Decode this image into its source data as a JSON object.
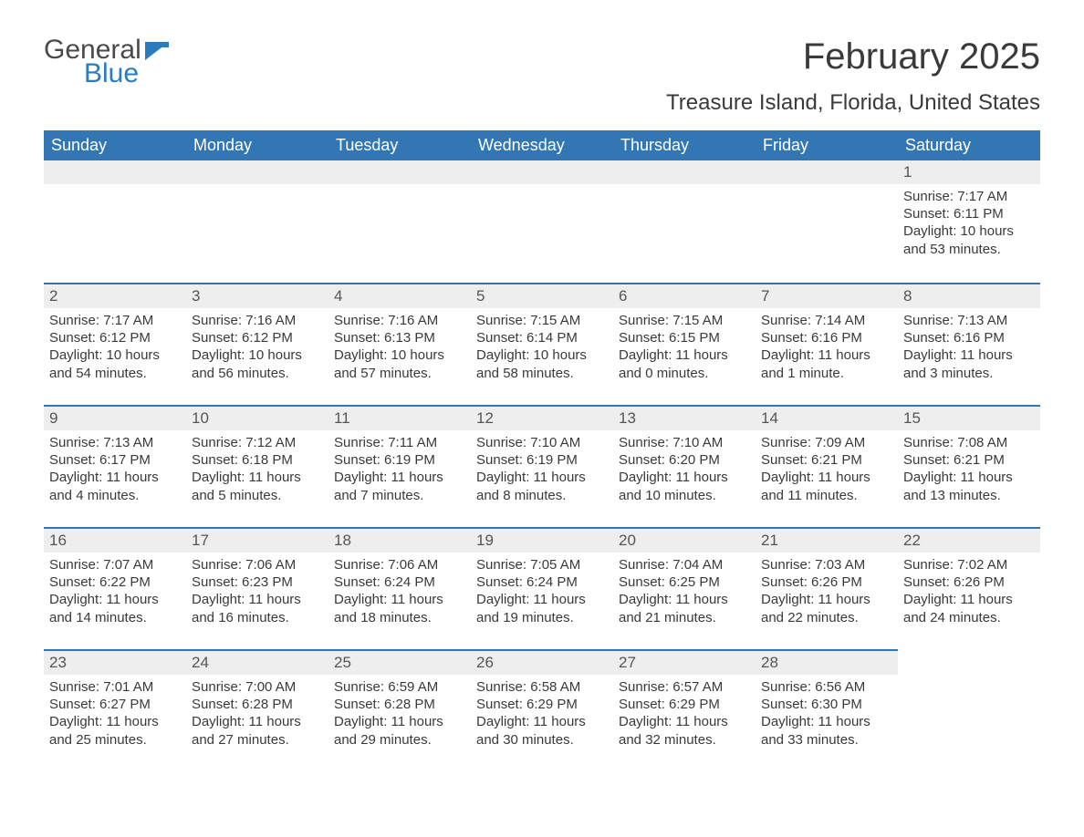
{
  "brand": {
    "line1": "General",
    "line2": "Blue",
    "line1_color": "#4a4a4a",
    "line2_color": "#2b7bbf"
  },
  "title": "February 2025",
  "subtitle": "Treasure Island, Florida, United States",
  "colors": {
    "header_bg": "#3277b3",
    "header_text": "#ffffff",
    "band_bg": "#eeeeee",
    "band_border": "#3277b3",
    "body_text": "#3a3a3a",
    "page_bg": "#ffffff"
  },
  "typography": {
    "title_fontsize": 40,
    "subtitle_fontsize": 24,
    "header_fontsize": 18,
    "daynum_fontsize": 17,
    "body_fontsize": 15
  },
  "weekdays": [
    "Sunday",
    "Monday",
    "Tuesday",
    "Wednesday",
    "Thursday",
    "Friday",
    "Saturday"
  ],
  "weeks": [
    [
      null,
      null,
      null,
      null,
      null,
      null,
      {
        "day": "1",
        "sunrise": "Sunrise: 7:17 AM",
        "sunset": "Sunset: 6:11 PM",
        "daylight": "Daylight: 10 hours and 53 minutes."
      }
    ],
    [
      {
        "day": "2",
        "sunrise": "Sunrise: 7:17 AM",
        "sunset": "Sunset: 6:12 PM",
        "daylight": "Daylight: 10 hours and 54 minutes."
      },
      {
        "day": "3",
        "sunrise": "Sunrise: 7:16 AM",
        "sunset": "Sunset: 6:12 PM",
        "daylight": "Daylight: 10 hours and 56 minutes."
      },
      {
        "day": "4",
        "sunrise": "Sunrise: 7:16 AM",
        "sunset": "Sunset: 6:13 PM",
        "daylight": "Daylight: 10 hours and 57 minutes."
      },
      {
        "day": "5",
        "sunrise": "Sunrise: 7:15 AM",
        "sunset": "Sunset: 6:14 PM",
        "daylight": "Daylight: 10 hours and 58 minutes."
      },
      {
        "day": "6",
        "sunrise": "Sunrise: 7:15 AM",
        "sunset": "Sunset: 6:15 PM",
        "daylight": "Daylight: 11 hours and 0 minutes."
      },
      {
        "day": "7",
        "sunrise": "Sunrise: 7:14 AM",
        "sunset": "Sunset: 6:16 PM",
        "daylight": "Daylight: 11 hours and 1 minute."
      },
      {
        "day": "8",
        "sunrise": "Sunrise: 7:13 AM",
        "sunset": "Sunset: 6:16 PM",
        "daylight": "Daylight: 11 hours and 3 minutes."
      }
    ],
    [
      {
        "day": "9",
        "sunrise": "Sunrise: 7:13 AM",
        "sunset": "Sunset: 6:17 PM",
        "daylight": "Daylight: 11 hours and 4 minutes."
      },
      {
        "day": "10",
        "sunrise": "Sunrise: 7:12 AM",
        "sunset": "Sunset: 6:18 PM",
        "daylight": "Daylight: 11 hours and 5 minutes."
      },
      {
        "day": "11",
        "sunrise": "Sunrise: 7:11 AM",
        "sunset": "Sunset: 6:19 PM",
        "daylight": "Daylight: 11 hours and 7 minutes."
      },
      {
        "day": "12",
        "sunrise": "Sunrise: 7:10 AM",
        "sunset": "Sunset: 6:19 PM",
        "daylight": "Daylight: 11 hours and 8 minutes."
      },
      {
        "day": "13",
        "sunrise": "Sunrise: 7:10 AM",
        "sunset": "Sunset: 6:20 PM",
        "daylight": "Daylight: 11 hours and 10 minutes."
      },
      {
        "day": "14",
        "sunrise": "Sunrise: 7:09 AM",
        "sunset": "Sunset: 6:21 PM",
        "daylight": "Daylight: 11 hours and 11 minutes."
      },
      {
        "day": "15",
        "sunrise": "Sunrise: 7:08 AM",
        "sunset": "Sunset: 6:21 PM",
        "daylight": "Daylight: 11 hours and 13 minutes."
      }
    ],
    [
      {
        "day": "16",
        "sunrise": "Sunrise: 7:07 AM",
        "sunset": "Sunset: 6:22 PM",
        "daylight": "Daylight: 11 hours and 14 minutes."
      },
      {
        "day": "17",
        "sunrise": "Sunrise: 7:06 AM",
        "sunset": "Sunset: 6:23 PM",
        "daylight": "Daylight: 11 hours and 16 minutes."
      },
      {
        "day": "18",
        "sunrise": "Sunrise: 7:06 AM",
        "sunset": "Sunset: 6:24 PM",
        "daylight": "Daylight: 11 hours and 18 minutes."
      },
      {
        "day": "19",
        "sunrise": "Sunrise: 7:05 AM",
        "sunset": "Sunset: 6:24 PM",
        "daylight": "Daylight: 11 hours and 19 minutes."
      },
      {
        "day": "20",
        "sunrise": "Sunrise: 7:04 AM",
        "sunset": "Sunset: 6:25 PM",
        "daylight": "Daylight: 11 hours and 21 minutes."
      },
      {
        "day": "21",
        "sunrise": "Sunrise: 7:03 AM",
        "sunset": "Sunset: 6:26 PM",
        "daylight": "Daylight: 11 hours and 22 minutes."
      },
      {
        "day": "22",
        "sunrise": "Sunrise: 7:02 AM",
        "sunset": "Sunset: 6:26 PM",
        "daylight": "Daylight: 11 hours and 24 minutes."
      }
    ],
    [
      {
        "day": "23",
        "sunrise": "Sunrise: 7:01 AM",
        "sunset": "Sunset: 6:27 PM",
        "daylight": "Daylight: 11 hours and 25 minutes."
      },
      {
        "day": "24",
        "sunrise": "Sunrise: 7:00 AM",
        "sunset": "Sunset: 6:28 PM",
        "daylight": "Daylight: 11 hours and 27 minutes."
      },
      {
        "day": "25",
        "sunrise": "Sunrise: 6:59 AM",
        "sunset": "Sunset: 6:28 PM",
        "daylight": "Daylight: 11 hours and 29 minutes."
      },
      {
        "day": "26",
        "sunrise": "Sunrise: 6:58 AM",
        "sunset": "Sunset: 6:29 PM",
        "daylight": "Daylight: 11 hours and 30 minutes."
      },
      {
        "day": "27",
        "sunrise": "Sunrise: 6:57 AM",
        "sunset": "Sunset: 6:29 PM",
        "daylight": "Daylight: 11 hours and 32 minutes."
      },
      {
        "day": "28",
        "sunrise": "Sunrise: 6:56 AM",
        "sunset": "Sunset: 6:30 PM",
        "daylight": "Daylight: 11 hours and 33 minutes."
      },
      null
    ]
  ]
}
